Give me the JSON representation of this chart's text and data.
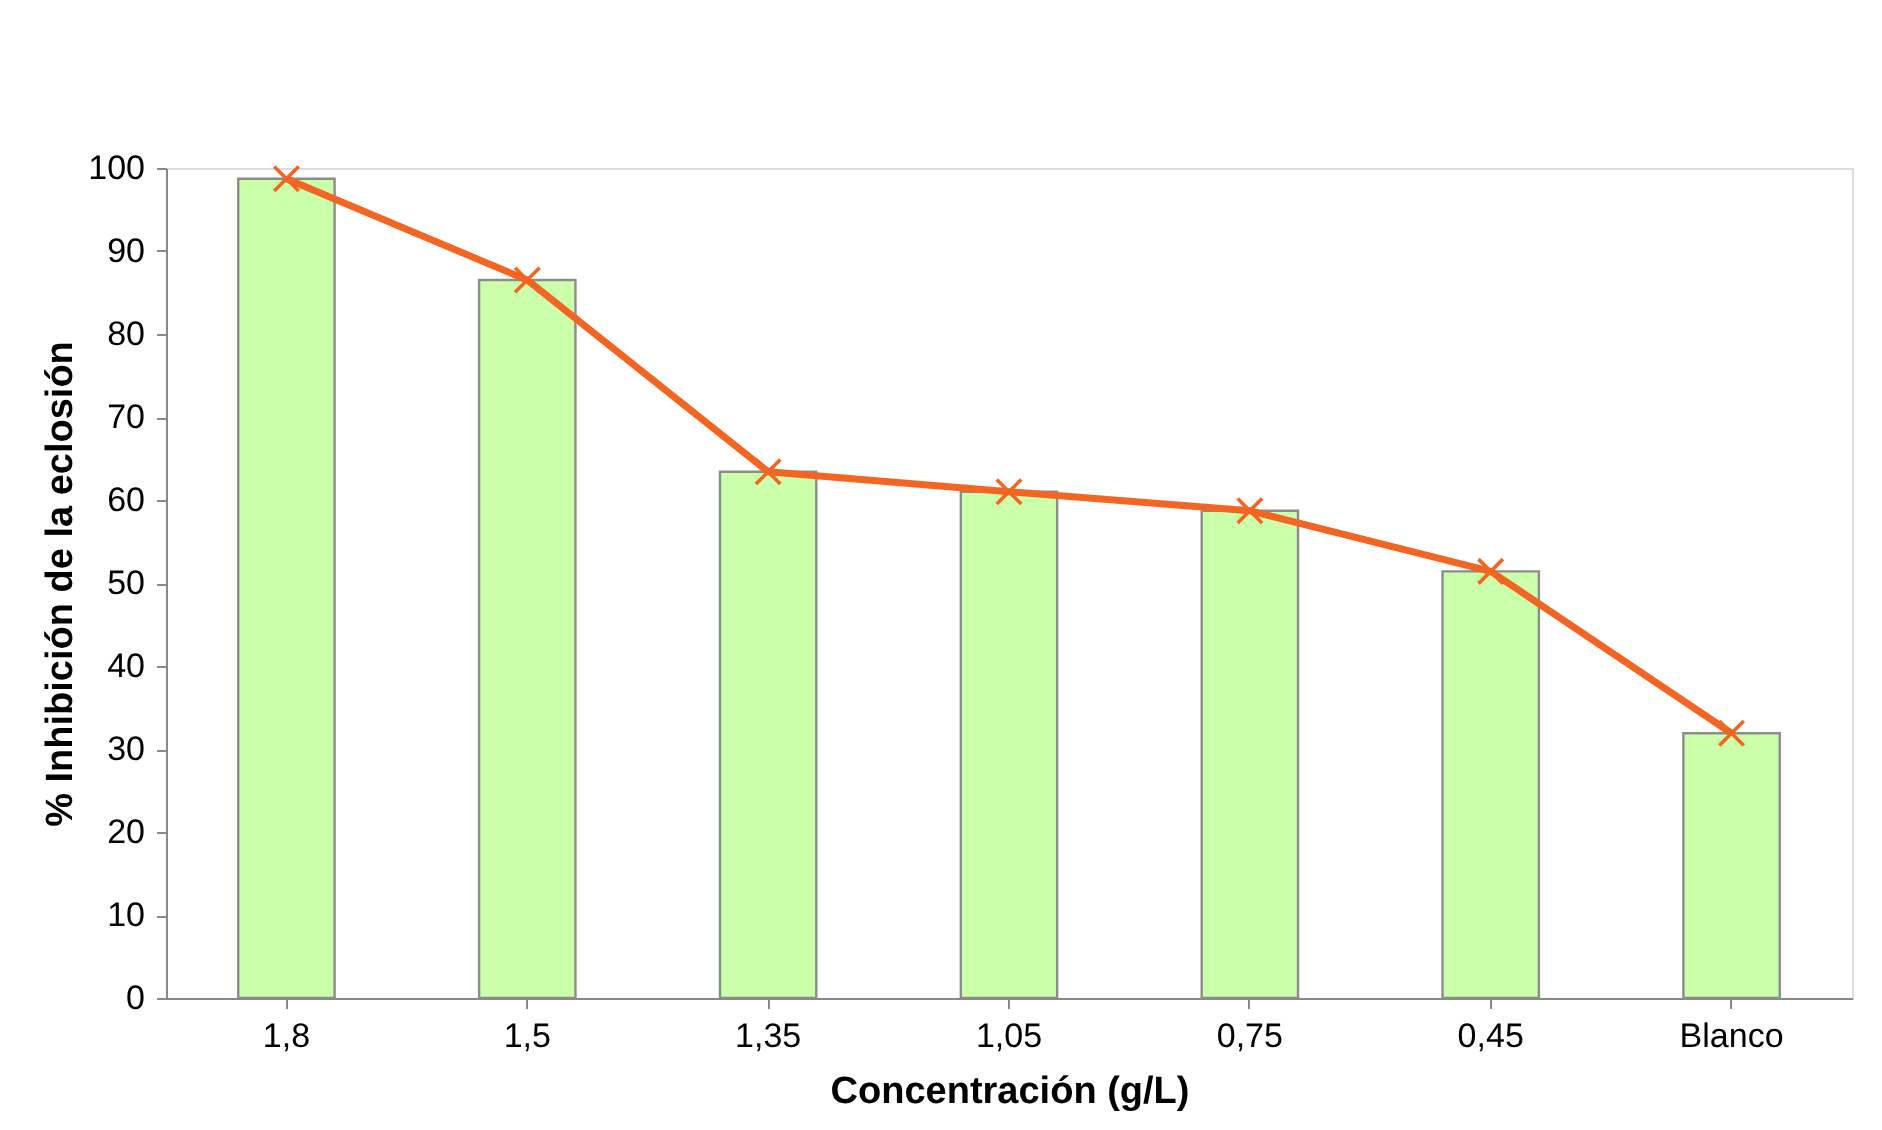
{
  "chart_data": {
    "type": "bar",
    "xlabel": "Concentración (g/L)",
    "ylabel": "% Inhibición de la eclosión",
    "categories": [
      "1,8",
      "1,5",
      "1,35",
      "1,05",
      "0,75",
      "0,45",
      "Blanco"
    ],
    "ylim": [
      0,
      100
    ],
    "yticks": [
      0,
      10,
      20,
      30,
      40,
      50,
      60,
      70,
      80,
      90,
      100
    ],
    "grid": false,
    "marker": "cross",
    "series": [
      {
        "color": "#ccffaa",
        "values": [
          98.7,
          86.5,
          63.4,
          61.0,
          58.7,
          51.4,
          31.9
        ]
      },
      {
        "type": "line",
        "color": "#f26522",
        "values": [
          98.7,
          86.5,
          63.4,
          61.0,
          58.7,
          51.4,
          31.9
        ]
      }
    ]
  }
}
